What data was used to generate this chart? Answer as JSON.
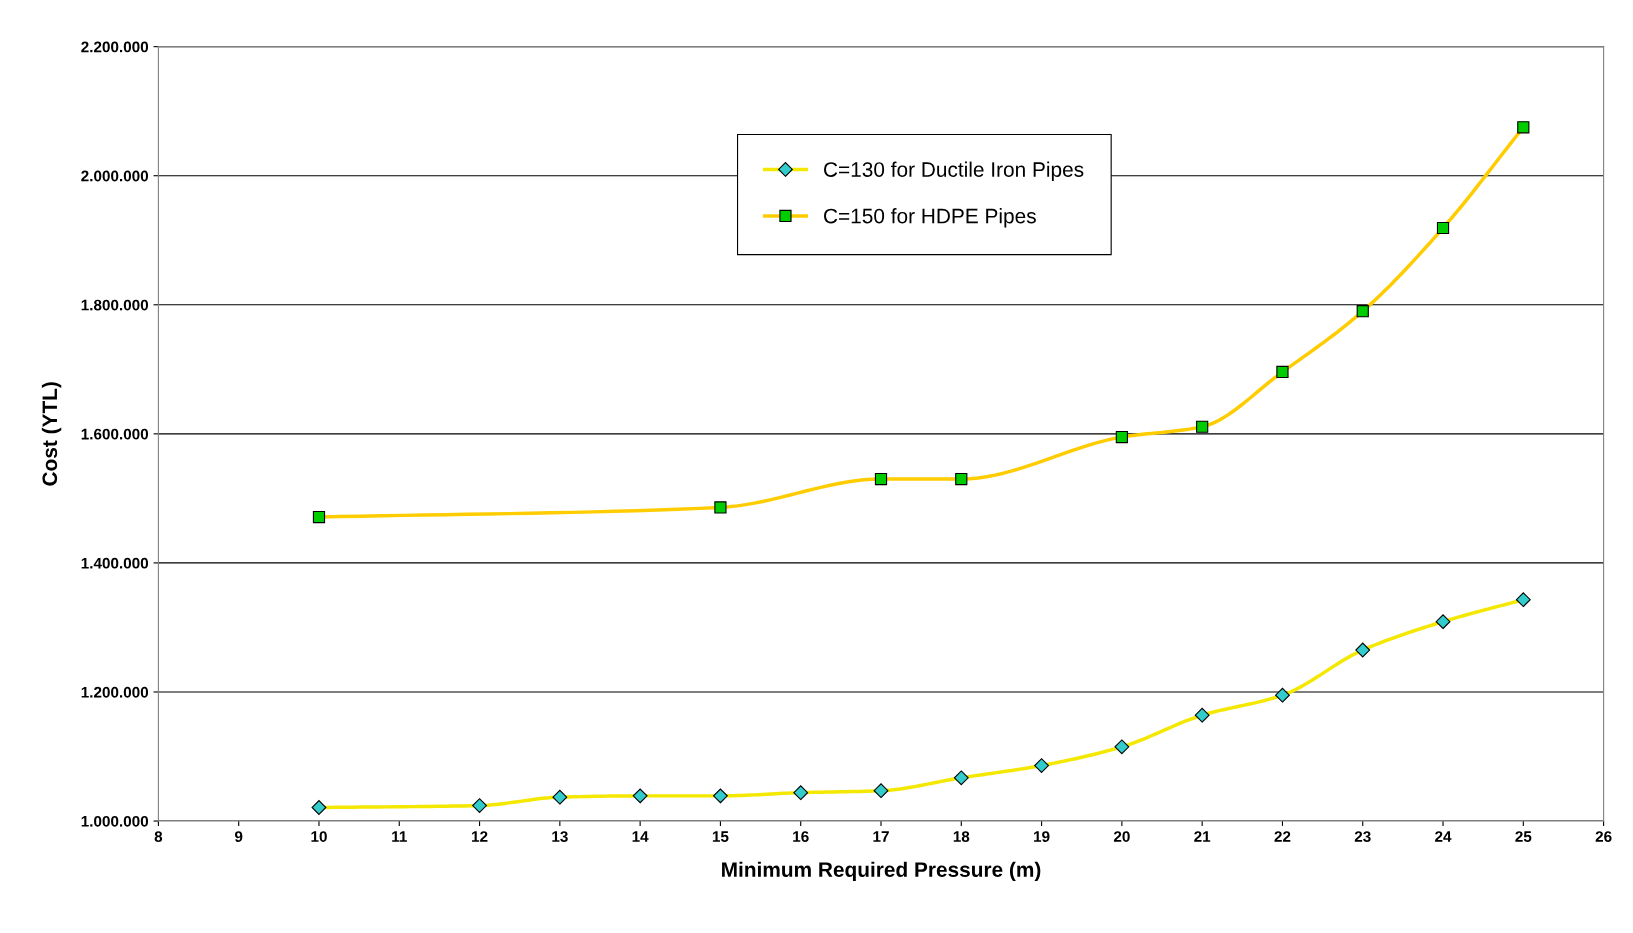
{
  "chart_data": {
    "type": "line",
    "xlabel": "Minimum Required Pressure (m)",
    "ylabel": "Cost (YTL)",
    "xlim": [
      8,
      26
    ],
    "xticks": [
      8,
      9,
      10,
      11,
      12,
      13,
      14,
      15,
      16,
      17,
      18,
      19,
      20,
      21,
      22,
      23,
      24,
      25,
      26
    ],
    "ylim": [
      1000000,
      2200000
    ],
    "yticks": [
      {
        "value": 1000000,
        "label": "1.000.000"
      },
      {
        "value": 1200000,
        "label": "1.200.000"
      },
      {
        "value": 1400000,
        "label": "1.400.000"
      },
      {
        "value": 1600000,
        "label": "1.600.000"
      },
      {
        "value": 1800000,
        "label": "1.800.000"
      },
      {
        "value": 2000000,
        "label": "2.000.000"
      },
      {
        "value": 2200000,
        "label": "2.200.000"
      }
    ],
    "grid": "y",
    "legend": "top",
    "line_style": "solid",
    "series": [
      {
        "name": "C=130 for Ductile Iron Pipes",
        "color": "#f5e800",
        "marker": "diamond",
        "colors": [
          "#33cccc",
          "#33cccc",
          "#33cccc",
          "#33cccc",
          "#33cccc",
          "#33cccc",
          "#33cccc",
          "#33cccc",
          "#33cccc",
          "#33cccc",
          "#33cccc",
          "#33cccc",
          "#33cccc",
          "#33cccc",
          "#33cccc"
        ],
        "x": [
          10,
          12,
          13,
          14,
          15,
          16,
          17,
          18,
          19,
          20,
          21,
          22,
          23,
          24,
          25
        ],
        "values": [
          1021000,
          1024000,
          1037000,
          1039000,
          1039000,
          1044000,
          1047000,
          1067000,
          1086000,
          1115000,
          1164000,
          1195000,
          1265000,
          1309000,
          1343000
        ]
      },
      {
        "name": "C=150 for HDPE Pipes",
        "color": "#ffcc00",
        "marker": "square",
        "colors": [
          "#00cc00",
          "#00cc00",
          "#00cc00",
          "#00cc00",
          "#00cc00",
          "#00cc00",
          "#00cc00",
          "#00cc00",
          "#00cc00",
          "#00cc00"
        ],
        "x": [
          10,
          15,
          17,
          18,
          20,
          21,
          22,
          23,
          24,
          25
        ],
        "values": [
          1471000,
          1486000,
          1530000,
          1530000,
          1595000,
          1611000,
          1696000,
          1790000,
          1919000,
          2075000
        ]
      }
    ]
  }
}
